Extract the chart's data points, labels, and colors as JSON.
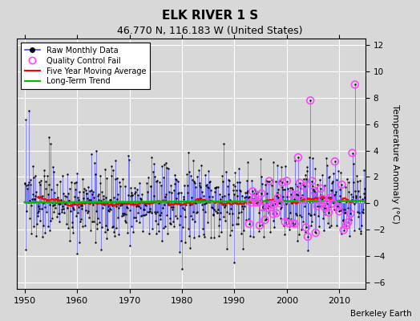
{
  "title": "ELK RIVER 1 S",
  "subtitle": "46.770 N, 116.183 W (United States)",
  "ylabel": "Temperature Anomaly (°C)",
  "credit": "Berkeley Earth",
  "xlim": [
    1948.5,
    2015
  ],
  "ylim": [
    -6.5,
    12.5
  ],
  "yticks": [
    -6,
    -4,
    -2,
    0,
    2,
    4,
    6,
    8,
    10,
    12
  ],
  "xticks": [
    1950,
    1960,
    1970,
    1980,
    1990,
    2000,
    2010
  ],
  "bg_color": "#d8d8d8",
  "grid_color": "white",
  "line_color": "#4444ff",
  "marker_color": "#000000",
  "ma_color": "red",
  "trend_color": "#00bb00",
  "qc_color": "#ff44ff"
}
